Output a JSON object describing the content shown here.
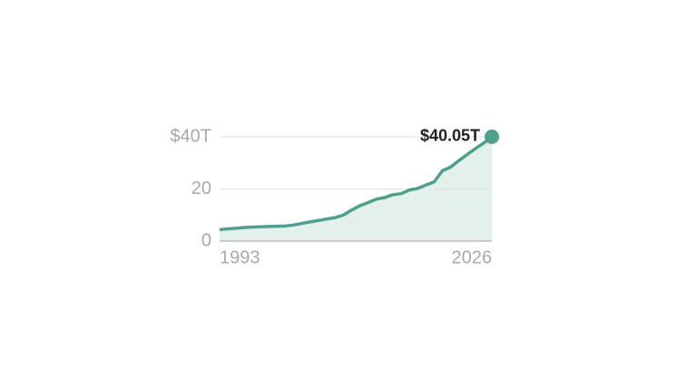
{
  "chart_data": {
    "type": "area",
    "x": [
      1993,
      1994,
      1995,
      1996,
      1997,
      1998,
      1999,
      2000,
      2001,
      2002,
      2003,
      2004,
      2005,
      2006,
      2007,
      2008,
      2009,
      2010,
      2011,
      2012,
      2013,
      2014,
      2015,
      2016,
      2017,
      2018,
      2019,
      2020,
      2021,
      2022,
      2023,
      2024,
      2025,
      2026
    ],
    "values": [
      4.4,
      4.7,
      4.9,
      5.2,
      5.4,
      5.5,
      5.6,
      5.7,
      5.8,
      6.2,
      6.8,
      7.4,
      7.9,
      8.5,
      9.0,
      10.0,
      11.9,
      13.6,
      14.8,
      16.1,
      16.7,
      17.8,
      18.2,
      19.6,
      20.2,
      21.5,
      22.7,
      27.0,
      28.4,
      30.9,
      33.2,
      35.5,
      37.6,
      40.05
    ],
    "value_labels": [
      null,
      null,
      null,
      null,
      null,
      null,
      null,
      null,
      null,
      null,
      null,
      null,
      null,
      null,
      null,
      null,
      null,
      null,
      null,
      null,
      null,
      null,
      null,
      null,
      null,
      null,
      null,
      null,
      null,
      null,
      null,
      null,
      null,
      "$40.05T"
    ],
    "color": "#4f9f8d",
    "fill_color": "#e4f0ec",
    "xlim": [
      1993,
      2026
    ],
    "xticks": [
      1993,
      2026
    ],
    "ylim": [
      0,
      40
    ],
    "yticks": [
      0,
      20,
      {
        "value": 40,
        "label": "$40T"
      }
    ],
    "grid": true
  }
}
